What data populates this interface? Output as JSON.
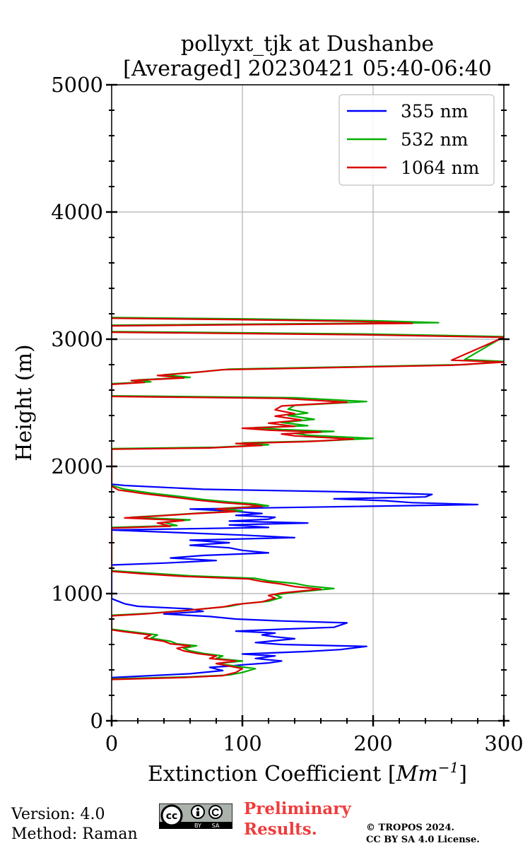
{
  "chart_data": {
    "type": "line",
    "title_line1": "pollyxt_tjk at Dushanbe",
    "title_line2": "[Averaged] 20230421 05:40-06:40",
    "xlabel": "Extinction Coefficient [",
    "xlabel_unit": "Mm",
    "xlabel_exp": "−1",
    "xlabel_close": "]",
    "ylabel": "Height (m)",
    "xlim": [
      0,
      300
    ],
    "ylim": [
      0,
      5000
    ],
    "xticks": [
      0,
      100,
      200,
      300
    ],
    "xtick_labels": [
      "0",
      "100",
      "200",
      "300"
    ],
    "yticks": [
      0,
      1000,
      2000,
      3000,
      4000,
      5000
    ],
    "ytick_labels": [
      "0",
      "1000",
      "2000",
      "3000",
      "4000",
      "5000"
    ],
    "grid": true,
    "legend_position": "top-right",
    "series": [
      {
        "name": "355 nm",
        "color": "#0000ff",
        "points": [
          [
            0,
            340
          ],
          [
            20,
            350
          ],
          [
            60,
            370
          ],
          [
            85,
            395
          ],
          [
            75,
            420
          ],
          [
            90,
            430
          ],
          [
            100,
            440
          ],
          [
            120,
            455
          ],
          [
            130,
            470
          ],
          [
            110,
            490
          ],
          [
            125,
            510
          ],
          [
            100,
            525
          ],
          [
            150,
            545
          ],
          [
            175,
            560
          ],
          [
            195,
            585
          ],
          [
            130,
            600
          ],
          [
            110,
            615
          ],
          [
            125,
            630
          ],
          [
            140,
            645
          ],
          [
            125,
            660
          ],
          [
            115,
            675
          ],
          [
            125,
            690
          ],
          [
            95,
            705
          ],
          [
            130,
            720
          ],
          [
            170,
            735
          ],
          [
            180,
            770
          ],
          [
            130,
            785
          ],
          [
            95,
            800
          ],
          [
            75,
            820
          ],
          [
            40,
            840
          ],
          [
            70,
            860
          ],
          [
            60,
            880
          ],
          [
            20,
            900
          ],
          [
            10,
            920
          ],
          [
            5,
            940
          ],
          [
            0,
            960
          ],
          [
            0,
            1225
          ],
          [
            40,
            1240
          ],
          [
            80,
            1260
          ],
          [
            45,
            1280
          ],
          [
            70,
            1300
          ],
          [
            120,
            1320
          ],
          [
            100,
            1340
          ],
          [
            90,
            1360
          ],
          [
            60,
            1380
          ],
          [
            90,
            1400
          ],
          [
            60,
            1420
          ],
          [
            140,
            1440
          ],
          [
            100,
            1460
          ],
          [
            50,
            1480
          ],
          [
            0,
            1500
          ],
          [
            120,
            1520
          ],
          [
            90,
            1540
          ],
          [
            150,
            1555
          ],
          [
            90,
            1570
          ],
          [
            120,
            1585
          ],
          [
            125,
            1600
          ],
          [
            95,
            1615
          ],
          [
            115,
            1630
          ],
          [
            90,
            1650
          ],
          [
            60,
            1665
          ],
          [
            280,
            1700
          ],
          [
            230,
            1715
          ],
          [
            210,
            1730
          ],
          [
            170,
            1745
          ],
          [
            240,
            1760
          ],
          [
            245,
            1780
          ],
          [
            180,
            1800
          ],
          [
            70,
            1820
          ],
          [
            40,
            1835
          ],
          [
            10,
            1850
          ],
          [
            0,
            1860
          ]
        ]
      },
      {
        "name": "532 nm",
        "color": "#00b000",
        "points": [
          [
            0,
            330
          ],
          [
            60,
            345
          ],
          [
            90,
            360
          ],
          [
            100,
            380
          ],
          [
            110,
            410
          ],
          [
            95,
            430
          ],
          [
            80,
            450
          ],
          [
            100,
            470
          ],
          [
            80,
            490
          ],
          [
            85,
            510
          ],
          [
            70,
            530
          ],
          [
            60,
            550
          ],
          [
            55,
            570
          ],
          [
            65,
            590
          ],
          [
            50,
            605
          ],
          [
            45,
            625
          ],
          [
            30,
            650
          ],
          [
            35,
            675
          ],
          [
            15,
            700
          ],
          [
            0,
            720
          ],
          [
            0,
            830
          ],
          [
            30,
            845
          ],
          [
            60,
            870
          ],
          [
            90,
            900
          ],
          [
            100,
            920
          ],
          [
            120,
            940
          ],
          [
            130,
            970
          ],
          [
            125,
            990
          ],
          [
            140,
            1010
          ],
          [
            170,
            1040
          ],
          [
            150,
            1060
          ],
          [
            140,
            1080
          ],
          [
            120,
            1100
          ],
          [
            110,
            1120
          ],
          [
            60,
            1140
          ],
          [
            30,
            1160
          ],
          [
            0,
            1180
          ],
          [
            0,
            1520
          ],
          [
            50,
            1535
          ],
          [
            40,
            1560
          ],
          [
            60,
            1580
          ],
          [
            15,
            1600
          ],
          [
            40,
            1615
          ],
          [
            70,
            1635
          ],
          [
            100,
            1650
          ],
          [
            85,
            1670
          ],
          [
            120,
            1690
          ],
          [
            110,
            1705
          ],
          [
            90,
            1720
          ],
          [
            70,
            1740
          ],
          [
            55,
            1760
          ],
          [
            30,
            1790
          ],
          [
            10,
            1820
          ],
          [
            0,
            1850
          ],
          [
            0,
            2140
          ],
          [
            80,
            2150
          ],
          [
            120,
            2170
          ],
          [
            100,
            2185
          ],
          [
            160,
            2200
          ],
          [
            200,
            2220
          ],
          [
            150,
            2245
          ],
          [
            140,
            2260
          ],
          [
            170,
            2275
          ],
          [
            130,
            2290
          ],
          [
            110,
            2305
          ],
          [
            150,
            2320
          ],
          [
            130,
            2345
          ],
          [
            155,
            2370
          ],
          [
            135,
            2400
          ],
          [
            150,
            2420
          ],
          [
            135,
            2450
          ],
          [
            140,
            2480
          ],
          [
            195,
            2510
          ],
          [
            140,
            2540
          ],
          [
            0,
            2555
          ],
          [
            0,
            2650
          ],
          [
            30,
            2665
          ],
          [
            20,
            2680
          ],
          [
            60,
            2700
          ],
          [
            40,
            2720
          ],
          [
            70,
            2745
          ],
          [
            90,
            2765
          ],
          [
            270,
            2800
          ],
          [
            300,
            2825
          ],
          [
            270,
            2840
          ],
          [
            300,
            3020
          ],
          [
            200,
            3040
          ],
          [
            0,
            3060
          ],
          [
            0,
            3110
          ],
          [
            250,
            3130
          ],
          [
            200,
            3145
          ],
          [
            100,
            3160
          ],
          [
            0,
            3170
          ]
        ]
      },
      {
        "name": "1064 nm",
        "color": "#dd0000",
        "points": [
          [
            0,
            325
          ],
          [
            55,
            340
          ],
          [
            85,
            355
          ],
          [
            95,
            380
          ],
          [
            100,
            410
          ],
          [
            90,
            430
          ],
          [
            80,
            450
          ],
          [
            95,
            470
          ],
          [
            75,
            490
          ],
          [
            80,
            510
          ],
          [
            65,
            530
          ],
          [
            55,
            550
          ],
          [
            50,
            570
          ],
          [
            60,
            590
          ],
          [
            45,
            605
          ],
          [
            40,
            625
          ],
          [
            25,
            650
          ],
          [
            30,
            675
          ],
          [
            10,
            700
          ],
          [
            0,
            715
          ],
          [
            0,
            825
          ],
          [
            25,
            840
          ],
          [
            55,
            865
          ],
          [
            85,
            895
          ],
          [
            95,
            915
          ],
          [
            115,
            935
          ],
          [
            125,
            965
          ],
          [
            120,
            985
          ],
          [
            130,
            1005
          ],
          [
            160,
            1035
          ],
          [
            140,
            1055
          ],
          [
            130,
            1075
          ],
          [
            115,
            1095
          ],
          [
            105,
            1115
          ],
          [
            55,
            1135
          ],
          [
            25,
            1155
          ],
          [
            0,
            1175
          ],
          [
            0,
            1515
          ],
          [
            45,
            1530
          ],
          [
            35,
            1555
          ],
          [
            55,
            1575
          ],
          [
            10,
            1595
          ],
          [
            35,
            1610
          ],
          [
            65,
            1630
          ],
          [
            95,
            1645
          ],
          [
            80,
            1665
          ],
          [
            115,
            1685
          ],
          [
            105,
            1700
          ],
          [
            85,
            1715
          ],
          [
            65,
            1735
          ],
          [
            50,
            1755
          ],
          [
            25,
            1785
          ],
          [
            5,
            1815
          ],
          [
            0,
            1845
          ],
          [
            0,
            2135
          ],
          [
            75,
            2145
          ],
          [
            115,
            2165
          ],
          [
            95,
            2180
          ],
          [
            150,
            2195
          ],
          [
            185,
            2215
          ],
          [
            140,
            2240
          ],
          [
            130,
            2255
          ],
          [
            160,
            2270
          ],
          [
            120,
            2285
          ],
          [
            100,
            2300
          ],
          [
            140,
            2315
          ],
          [
            120,
            2340
          ],
          [
            145,
            2365
          ],
          [
            125,
            2395
          ],
          [
            140,
            2415
          ],
          [
            125,
            2445
          ],
          [
            130,
            2475
          ],
          [
            180,
            2505
          ],
          [
            130,
            2535
          ],
          [
            0,
            2550
          ],
          [
            0,
            2645
          ],
          [
            25,
            2660
          ],
          [
            15,
            2675
          ],
          [
            55,
            2695
          ],
          [
            35,
            2715
          ],
          [
            65,
            2740
          ],
          [
            85,
            2760
          ],
          [
            260,
            2795
          ],
          [
            300,
            2820
          ],
          [
            260,
            2835
          ],
          [
            300,
            3015
          ],
          [
            190,
            3035
          ],
          [
            0,
            3055
          ],
          [
            0,
            3105
          ],
          [
            230,
            3125
          ],
          [
            190,
            3140
          ],
          [
            90,
            3155
          ],
          [
            0,
            3165
          ]
        ]
      }
    ]
  },
  "footer": {
    "version": "Version: 4.0",
    "method": "Method: Raman",
    "preliminary_line1": "Preliminary",
    "preliminary_line2": "Results.",
    "copyright_line1": "© TROPOS 2024.",
    "copyright_line2": "CC BY SA 4.0 License.",
    "cc_text": "cc",
    "by_text": "BY",
    "sa_text": "SA"
  }
}
